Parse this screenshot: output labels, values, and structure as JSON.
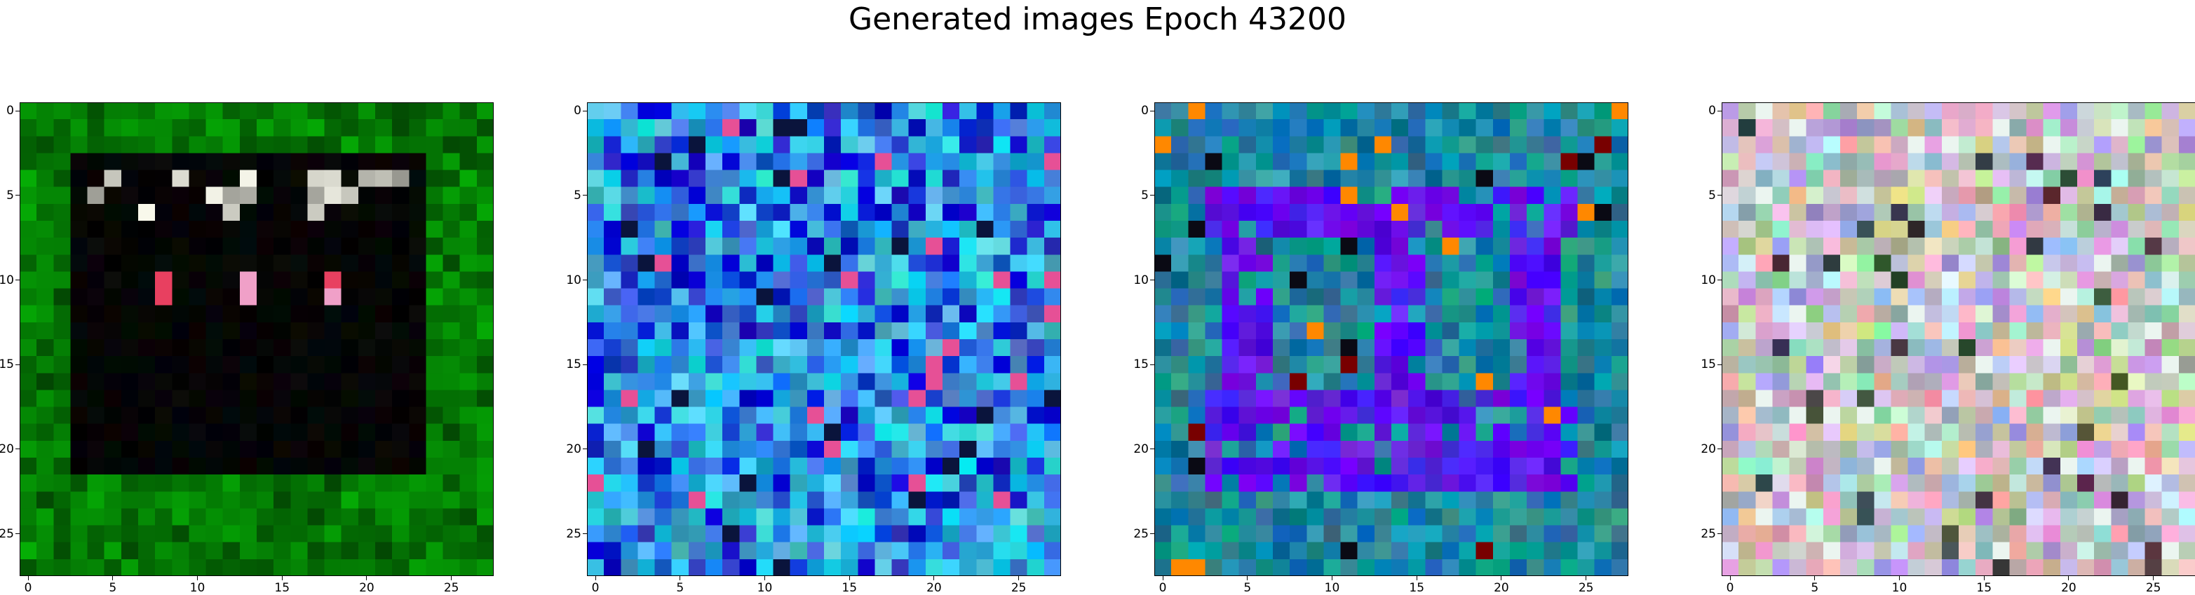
{
  "title": "Generated images Epoch 43200",
  "chart_data": [
    {
      "type": "heatmap",
      "theme": "green-border-dark-center",
      "grid_size": 28,
      "xticks": [
        0,
        5,
        10,
        15,
        20,
        25
      ],
      "yticks": [
        0,
        5,
        10,
        15,
        20,
        25
      ],
      "xlim": [
        -0.5,
        27.5
      ],
      "ylim": [
        27.5,
        -0.5
      ],
      "colors": {
        "primary": "#0a7a0a",
        "center": "#050505",
        "accent": "#e84060"
      }
    },
    {
      "type": "heatmap",
      "theme": "blue-cyan-noise",
      "grid_size": 28,
      "xticks": [
        0,
        5,
        10,
        15,
        20,
        25
      ],
      "yticks": [
        0,
        5,
        10,
        15,
        20,
        25
      ],
      "xlim": [
        -0.5,
        27.5
      ],
      "ylim": [
        27.5,
        -0.5
      ],
      "colors": {
        "primary": "#2a8ae8",
        "secondary": "#20d0e8",
        "accent": "#0000c8"
      }
    },
    {
      "type": "heatmap",
      "theme": "teal-with-violet-frame",
      "grid_size": 28,
      "xticks": [
        0,
        5,
        10,
        15,
        20,
        25
      ],
      "yticks": [
        0,
        5,
        10,
        15,
        20,
        25
      ],
      "xlim": [
        -0.5,
        27.5
      ],
      "ylim": [
        27.5,
        -0.5
      ],
      "colors": {
        "primary": "#1a9a8a",
        "frame": "#5a10f0",
        "accent": "#ff8800"
      }
    },
    {
      "type": "heatmap",
      "theme": "pastel-multicolor-noise",
      "grid_size": 28,
      "xticks": [
        0,
        5,
        10,
        15,
        20,
        25
      ],
      "yticks": [
        0,
        5,
        10,
        15,
        20,
        25
      ],
      "xlim": [
        -0.5,
        27.5
      ],
      "ylim": [
        27.5,
        -0.5
      ],
      "colors": {
        "primary": "#d8b8d8",
        "secondary": "#a8d8b8",
        "accent": "#404040"
      }
    }
  ]
}
